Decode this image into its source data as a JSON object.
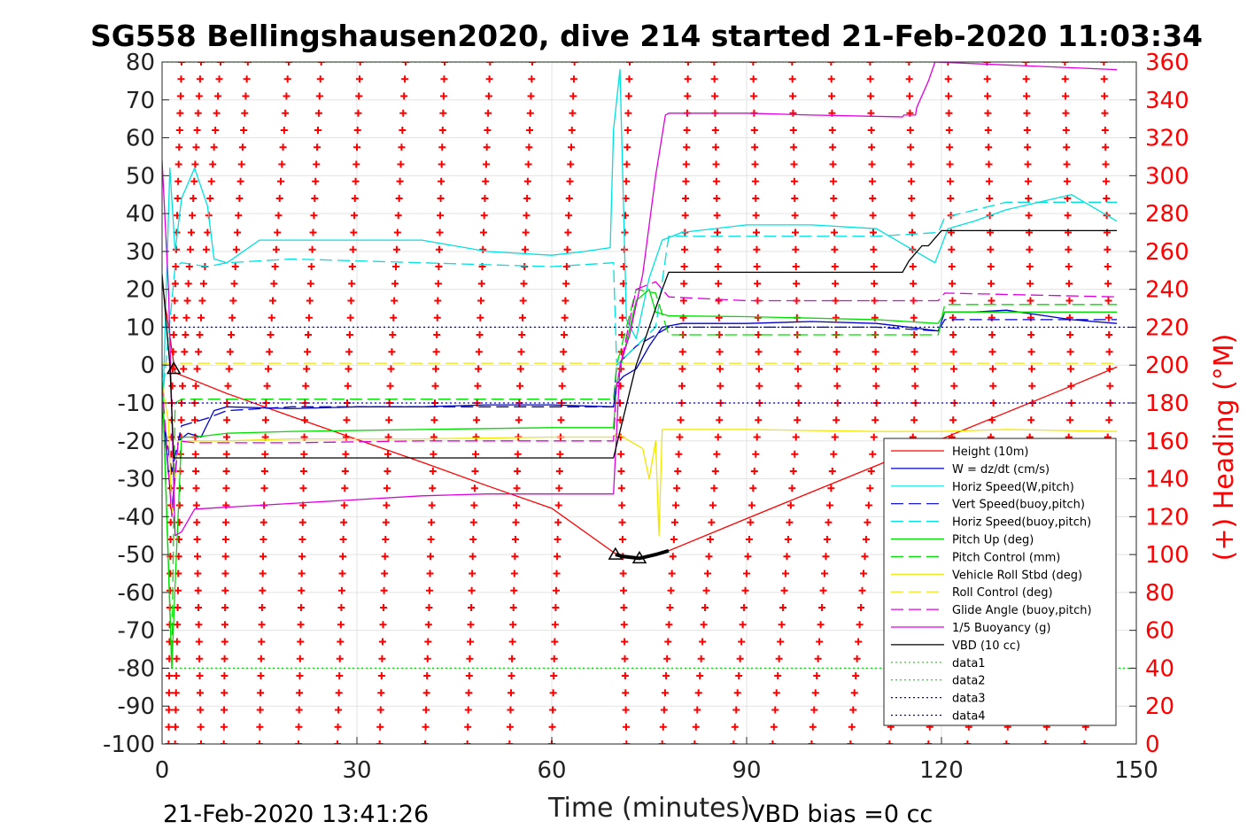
{
  "chart_data": {
    "type": "line",
    "title": "SG558 Bellingshausen2020, dive 214 started 21-Feb-2020 11:03:34",
    "xlabel": "Time (minutes)",
    "ylabel_right": "(+) Heading (°M)",
    "xlim": [
      0,
      150
    ],
    "ylim": [
      -100,
      80
    ],
    "ylim_right": [
      0,
      360
    ],
    "x_ticks": [
      "0",
      "30",
      "60",
      "90",
      "120",
      "150"
    ],
    "y_ticks": [
      "80",
      "70",
      "60",
      "50",
      "40",
      "30",
      "20",
      "10",
      "0",
      "-10",
      "-20",
      "-30",
      "-40",
      "-50",
      "-60",
      "-70",
      "-80",
      "-90",
      "-100"
    ],
    "y_ticks_right": [
      "360",
      "340",
      "320",
      "300",
      "280",
      "260",
      "240",
      "220",
      "200",
      "180",
      "160",
      "140",
      "120",
      "100",
      "80",
      "60",
      "40",
      "20",
      "0"
    ],
    "grid": true,
    "legend_position": "bottom-right",
    "footer_left": "21-Feb-2020 13:41:26",
    "footer_right": "VBD bias =0 cc",
    "series": [
      {
        "name": "Height (10m)",
        "color": "#ff0000",
        "style": "solid",
        "x": [
          0,
          2,
          10,
          20,
          30,
          40,
          50,
          60,
          70,
          73.5,
          78,
          90,
          100,
          110,
          120,
          130,
          140,
          147
        ],
        "y": [
          22,
          -2,
          -7.5,
          -13.6,
          -19.6,
          -25.6,
          -31.8,
          -37.8,
          -50,
          -51,
          -49,
          -40.5,
          -33.5,
          -26.5,
          -19.5,
          -12.5,
          -5.5,
          -0.5
        ]
      },
      {
        "name": "W = dz/dt (cm/s)",
        "color": "#0000cc",
        "style": "solid",
        "x": [
          0,
          1.5,
          2.5,
          4,
          6,
          8,
          10,
          20,
          30,
          40,
          50,
          60,
          69.5,
          70,
          71,
          73,
          75,
          77,
          80,
          90,
          100,
          110,
          115,
          119.5,
          120.5,
          125,
          130,
          140,
          147
        ],
        "y": [
          -10,
          -38,
          -20,
          -18,
          -19,
          -12,
          -11,
          -11.5,
          -11,
          -11,
          -10.5,
          -10.5,
          -11,
          -5,
          -3,
          -1,
          5,
          10,
          11,
          11,
          11.5,
          11,
          10,
          9,
          14,
          14,
          14.5,
          12,
          11
        ]
      },
      {
        "name": "Horiz Speed(W,pitch)",
        "color": "#00e0e0",
        "style": "solid",
        "x": [
          0,
          1.2,
          2,
          3,
          5,
          7,
          8,
          10,
          15,
          20,
          30,
          40,
          50,
          60,
          65,
          69,
          69.5,
          70.5,
          71.5,
          73,
          75,
          77,
          80,
          90,
          100,
          110,
          115,
          119,
          121,
          125,
          130,
          140,
          147
        ],
        "y": [
          -18,
          52,
          30,
          44,
          52,
          42,
          28,
          27,
          33,
          33,
          33,
          33,
          30,
          29,
          30,
          31,
          62,
          78,
          12,
          7,
          23,
          33,
          35,
          37,
          37,
          36,
          31,
          27,
          36,
          38,
          41,
          45,
          38
        ]
      },
      {
        "name": "Vert Speed(buoy,pitch)",
        "color": "#0000cc",
        "style": "dashed",
        "x": [
          0,
          1.5,
          3,
          5,
          7,
          10,
          20,
          40,
          60,
          69.5,
          70,
          73,
          76,
          78,
          90,
          110,
          119.5,
          120.5,
          130,
          147
        ],
        "y": [
          -12,
          -28,
          -16,
          -15,
          -14,
          -12,
          -11,
          -11,
          -11,
          -11,
          0,
          5,
          8,
          10,
          10,
          10,
          9,
          12,
          12,
          12
        ]
      },
      {
        "name": "Horiz Speed(buoy,pitch)",
        "color": "#00e0e0",
        "style": "dashed",
        "x": [
          0,
          2,
          3,
          7,
          10,
          20,
          40,
          60,
          69.5,
          70,
          73,
          76,
          78,
          90,
          110,
          119.5,
          120.5,
          130,
          147
        ],
        "y": [
          -10,
          26,
          27,
          26,
          27,
          28,
          27,
          26,
          27,
          0,
          5,
          10,
          34,
          34,
          34,
          35,
          39,
          43,
          43
        ]
      },
      {
        "name": "Pitch Up (deg)",
        "color": "#00dd00",
        "style": "solid",
        "x": [
          0,
          1.5,
          2,
          3,
          5,
          10,
          20,
          40,
          60,
          69.5,
          70,
          73,
          75,
          76,
          78,
          90,
          110,
          119.5,
          120.5,
          130,
          147
        ],
        "y": [
          -3,
          -80,
          -58,
          -19,
          -19,
          -18,
          -17.5,
          -17,
          -16.5,
          -16.5,
          -5,
          17,
          20,
          14,
          13,
          12.8,
          12,
          11,
          14,
          14,
          14
        ]
      },
      {
        "name": "Pitch Control (mm)",
        "color": "#00dd00",
        "style": "dashed",
        "x": [
          0,
          1.5,
          2,
          3,
          10,
          40,
          69.5,
          70,
          73,
          76,
          78,
          90,
          110,
          119.5,
          120.5,
          147
        ],
        "y": [
          0,
          -80,
          -10,
          -9,
          -9,
          -9,
          -9,
          0,
          20,
          19,
          8,
          8,
          8,
          8,
          16,
          16
        ]
      },
      {
        "name": "Vehicle Roll Stbd (deg)",
        "color": "#f2e600",
        "style": "solid",
        "x": [
          0,
          1,
          1.5,
          2.5,
          5,
          10,
          20,
          40,
          60,
          69.5,
          70,
          72,
          74,
          75,
          76,
          76.5,
          77,
          78,
          90,
          110,
          120,
          130,
          147
        ],
        "y": [
          -5,
          -15,
          -40,
          -20,
          -20,
          -20,
          -19.5,
          -19.5,
          -19,
          -19,
          -18,
          -20,
          -22,
          -30,
          -20,
          -45,
          -17,
          -17,
          -17,
          -17.5,
          -17.5,
          -17,
          -17.5
        ]
      },
      {
        "name": "Roll Control (deg)",
        "color": "#f2e600",
        "style": "dashed",
        "x": [
          0,
          147
        ],
        "y": [
          0.5,
          0.5
        ]
      },
      {
        "name": "Glide Angle (buoy,pitch)",
        "color": "#dd00dd",
        "style": "dashed",
        "x": [
          0,
          1.5,
          2.5,
          5,
          20,
          40,
          60,
          69.5,
          70,
          73,
          76,
          78,
          90,
          110,
          119.5,
          120.5,
          147
        ],
        "y": [
          -5,
          -40,
          -20,
          -20.5,
          -20.5,
          -20,
          -20,
          -20,
          -5,
          20,
          22,
          18,
          17,
          17,
          17,
          19,
          18
        ]
      },
      {
        "name": "1/5 Buoyancy (g)",
        "color": "#dd00dd",
        "style": "solid",
        "x": [
          0,
          1,
          2,
          3,
          5,
          10,
          20,
          30,
          40,
          50,
          60,
          69.5,
          70.5,
          72,
          74,
          76,
          77.5,
          78,
          90,
          100,
          114,
          114.2,
          116,
          116.2,
          118,
          119,
          147
        ],
        "y": [
          54,
          20,
          -45,
          -44,
          -38,
          -37.5,
          -36.5,
          -35.5,
          -34.5,
          -34,
          -34,
          -34,
          0,
          8,
          24,
          50,
          66,
          66.5,
          66.5,
          66,
          65.5,
          66,
          66,
          68,
          75,
          80,
          78
        ]
      },
      {
        "name": "VBD (10 cc)",
        "color": "#000000",
        "style": "solid",
        "x": [
          0,
          1.2,
          1.8,
          69.5,
          73,
          77,
          78,
          114,
          115,
          117,
          118,
          120,
          120.5,
          147
        ],
        "y": [
          24,
          0,
          -24.5,
          -24.5,
          0,
          20,
          24.5,
          24.5,
          27.5,
          31.5,
          31.5,
          35.5,
          35.5,
          35.5
        ]
      },
      {
        "name": "data1",
        "color": "#00dd00",
        "style": "dotted",
        "x": [
          0,
          150
        ],
        "y": [
          80,
          80
        ]
      },
      {
        "name": "data2",
        "color": "#00dd00",
        "style": "dotted",
        "x": [
          0,
          150
        ],
        "y": [
          -80,
          -80
        ]
      },
      {
        "name": "data3",
        "color": "#0000cc",
        "style": "dotted",
        "x": [
          0,
          150
        ],
        "y": [
          10,
          10
        ]
      },
      {
        "name": "data4",
        "color": "#0000cc",
        "style": "dotted",
        "x": [
          0,
          150
        ],
        "y": [
          -10,
          -10
        ]
      }
    ],
    "heading_series": {
      "name": "(+) Heading",
      "color": "#ff0000",
      "marker": "+",
      "sweeps": [
        [
          1.5,
          1.0,
          3.0
        ],
        [
          3.0,
          2.0,
          6.0
        ],
        [
          5.0,
          6.0,
          9.0
        ],
        [
          10.0,
          9.5,
          13.2
        ],
        [
          16.0,
          15.0,
          19.5
        ],
        [
          22.0,
          21.0,
          24.5
        ],
        [
          28.5,
          27.0,
          30.5
        ],
        [
          35.0,
          33.5,
          37.5
        ],
        [
          42.0,
          40.5,
          43.5
        ],
        [
          48.5,
          47.0,
          50.5
        ],
        [
          55.0,
          53.5,
          57.0
        ],
        [
          61.5,
          60.0,
          63.5
        ],
        [
          70.5,
          71.5,
          72.0
        ],
        [
          80.0,
          77.0,
          81.0
        ],
        [
          86.0,
          82.0,
          85.0
        ],
        [
          92.0,
          88.0,
          91.0
        ],
        [
          98.0,
          94.0,
          97.0
        ],
        [
          104.0,
          100.0,
          103.0
        ],
        [
          110.0,
          106.0,
          109.0
        ],
        [
          116.0,
          112.0,
          115.0
        ],
        [
          122.0,
          118.0,
          121.0
        ],
        [
          128.0,
          124.0,
          127.0
        ],
        [
          134.0,
          130.0,
          133.0
        ],
        [
          140.0,
          136.0,
          139.0
        ],
        [
          146.0,
          142.0,
          145.0
        ]
      ]
    },
    "markers": {
      "triangles": [
        [
          1.8,
          -1
        ],
        [
          69.8,
          -50
        ],
        [
          73.5,
          -51
        ]
      ],
      "thick_segment": {
        "x": [
          69.8,
          71,
          73.5,
          76,
          78
        ],
        "y": [
          -50,
          -50.5,
          -51,
          -50,
          -49
        ]
      }
    }
  }
}
